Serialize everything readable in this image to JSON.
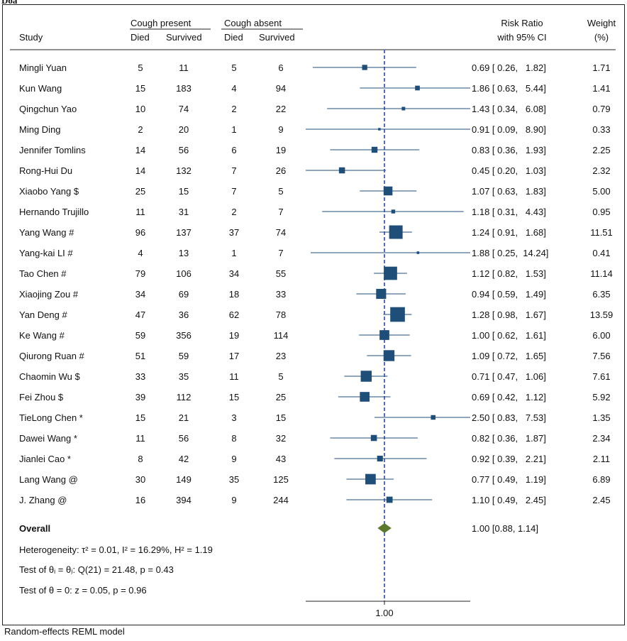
{
  "top_label": "Doa",
  "footer": "Random-effects REML model",
  "headers": {
    "group1": "Cough present",
    "group2": "Cough absent",
    "study": "Study",
    "died1": "Died",
    "surv1": "Survived",
    "died2": "Died",
    "surv2": "Survived",
    "rr_line1": "Risk Ratio",
    "rr_line2": "with 95% CI",
    "weight_line1": "Weight",
    "weight_line2": "(%)"
  },
  "overall": {
    "label": "Overall",
    "rr_text": "1.00 [0.88,  1.14]",
    "heterogeneity": "Heterogeneity: τ² = 0.01, I² = 16.29%, H² = 1.19",
    "test_theta_i": "Test of θᵢ = θⱼ: Q(21) = 21.48, p = 0.43",
    "test_theta_0": "Test of θ = 0: z = 0.05, p = 0.96"
  },
  "colors": {
    "marker": "#1f4e79",
    "diamond": "#5b7a2e",
    "refline": "#5b6cc4"
  },
  "chart_data": {
    "type": "forest",
    "x_scale": "log",
    "x_tick_labels": [
      "1.00"
    ],
    "reference_line": 1.0,
    "studies": [
      {
        "name": "Mingli Yuan",
        "died1": 5,
        "surv1": 11,
        "died2": 5,
        "surv2": 6,
        "rr": 0.69,
        "lo": 0.26,
        "hi": 1.82,
        "weight": 1.71,
        "rr_text": "0.69 [ 0.26,   1.82]",
        "weight_text": "1.71"
      },
      {
        "name": "Kun Wang",
        "died1": 15,
        "surv1": 183,
        "died2": 4,
        "surv2": 94,
        "rr": 1.86,
        "lo": 0.63,
        "hi": 5.44,
        "weight": 1.41,
        "rr_text": "1.86 [ 0.63,   5.44]",
        "weight_text": "1.41"
      },
      {
        "name": "Qingchun Yao",
        "died1": 10,
        "surv1": 74,
        "died2": 2,
        "surv2": 22,
        "rr": 1.43,
        "lo": 0.34,
        "hi": 6.08,
        "weight": 0.79,
        "rr_text": "1.43 [ 0.34,   6.08]",
        "weight_text": "0.79"
      },
      {
        "name": "Ming Ding",
        "died1": 2,
        "surv1": 20,
        "died2": 1,
        "surv2": 9,
        "rr": 0.91,
        "lo": 0.09,
        "hi": 8.9,
        "weight": 0.33,
        "rr_text": "0.91 [ 0.09,   8.90]",
        "weight_text": "0.33"
      },
      {
        "name": "Jennifer Tomlins",
        "died1": 14,
        "surv1": 56,
        "died2": 6,
        "surv2": 19,
        "rr": 0.83,
        "lo": 0.36,
        "hi": 1.93,
        "weight": 2.25,
        "rr_text": "0.83 [ 0.36,   1.93]",
        "weight_text": "2.25"
      },
      {
        "name": "Rong-Hui Du",
        "died1": 14,
        "surv1": 132,
        "died2": 7,
        "surv2": 26,
        "rr": 0.45,
        "lo": 0.2,
        "hi": 1.03,
        "weight": 2.32,
        "rr_text": "0.45 [ 0.20,   1.03]",
        "weight_text": "2.32"
      },
      {
        "name": "Xiaobo Yang $",
        "died1": 25,
        "surv1": 15,
        "died2": 7,
        "surv2": 5,
        "rr": 1.07,
        "lo": 0.63,
        "hi": 1.83,
        "weight": 5.0,
        "rr_text": "1.07 [ 0.63,   1.83]",
        "weight_text": "5.00"
      },
      {
        "name": "Hernando Trujillo",
        "died1": 11,
        "surv1": 31,
        "died2": 2,
        "surv2": 7,
        "rr": 1.18,
        "lo": 0.31,
        "hi": 4.43,
        "weight": 0.95,
        "rr_text": "1.18 [ 0.31,   4.43]",
        "weight_text": "0.95"
      },
      {
        "name": "Yang Wang #",
        "died1": 96,
        "surv1": 137,
        "died2": 37,
        "surv2": 74,
        "rr": 1.24,
        "lo": 0.91,
        "hi": 1.68,
        "weight": 11.51,
        "rr_text": "1.24 [ 0.91,   1.68]",
        "weight_text": "11.51"
      },
      {
        "name": "Yang-kai LI #",
        "died1": 4,
        "surv1": 13,
        "died2": 1,
        "surv2": 7,
        "rr": 1.88,
        "lo": 0.25,
        "hi": 14.24,
        "weight": 0.41,
        "rr_text": "1.88 [ 0.25,  14.24]",
        "weight_text": "0.41"
      },
      {
        "name": "Tao Chen #",
        "died1": 79,
        "surv1": 106,
        "died2": 34,
        "surv2": 55,
        "rr": 1.12,
        "lo": 0.82,
        "hi": 1.53,
        "weight": 11.14,
        "rr_text": "1.12 [ 0.82,   1.53]",
        "weight_text": "11.14"
      },
      {
        "name": "Xiaojing Zou #",
        "died1": 34,
        "surv1": 69,
        "died2": 18,
        "surv2": 33,
        "rr": 0.94,
        "lo": 0.59,
        "hi": 1.49,
        "weight": 6.35,
        "rr_text": "0.94 [ 0.59,   1.49]",
        "weight_text": "6.35"
      },
      {
        "name": "Yan Deng #",
        "died1": 47,
        "surv1": 36,
        "died2": 62,
        "surv2": 78,
        "rr": 1.28,
        "lo": 0.98,
        "hi": 1.67,
        "weight": 13.59,
        "rr_text": "1.28 [ 0.98,   1.67]",
        "weight_text": "13.59"
      },
      {
        "name": "Ke Wang #",
        "died1": 59,
        "surv1": 356,
        "died2": 19,
        "surv2": 114,
        "rr": 1.0,
        "lo": 0.62,
        "hi": 1.61,
        "weight": 6.0,
        "rr_text": "1.00 [ 0.62,   1.61]",
        "weight_text": "6.00"
      },
      {
        "name": "Qiurong Ruan #",
        "died1": 51,
        "surv1": 59,
        "died2": 17,
        "surv2": 23,
        "rr": 1.09,
        "lo": 0.72,
        "hi": 1.65,
        "weight": 7.56,
        "rr_text": "1.09 [ 0.72,   1.65]",
        "weight_text": "7.56"
      },
      {
        "name": "Chaomin Wu $",
        "died1": 33,
        "surv1": 35,
        "died2": 11,
        "surv2": 5,
        "rr": 0.71,
        "lo": 0.47,
        "hi": 1.06,
        "weight": 7.61,
        "rr_text": "0.71 [ 0.47,   1.06]",
        "weight_text": "7.61"
      },
      {
        "name": "Fei Zhou $",
        "died1": 39,
        "surv1": 112,
        "died2": 15,
        "surv2": 25,
        "rr": 0.69,
        "lo": 0.42,
        "hi": 1.12,
        "weight": 5.92,
        "rr_text": "0.69 [ 0.42,   1.12]",
        "weight_text": "5.92"
      },
      {
        "name": "TieLong Chen *",
        "died1": 15,
        "surv1": 21,
        "died2": 3,
        "surv2": 15,
        "rr": 2.5,
        "lo": 0.83,
        "hi": 7.53,
        "weight": 1.35,
        "rr_text": "2.50 [ 0.83,   7.53]",
        "weight_text": "1.35"
      },
      {
        "name": "Dawei Wang *",
        "died1": 11,
        "surv1": 56,
        "died2": 8,
        "surv2": 32,
        "rr": 0.82,
        "lo": 0.36,
        "hi": 1.87,
        "weight": 2.34,
        "rr_text": "0.82 [ 0.36,   1.87]",
        "weight_text": "2.34"
      },
      {
        "name": "Jianlei Cao *",
        "died1": 8,
        "surv1": 42,
        "died2": 9,
        "surv2": 43,
        "rr": 0.92,
        "lo": 0.39,
        "hi": 2.21,
        "weight": 2.11,
        "rr_text": "0.92 [ 0.39,   2.21]",
        "weight_text": "2.11"
      },
      {
        "name": "Lang Wang @",
        "died1": 30,
        "surv1": 149,
        "died2": 35,
        "surv2": 125,
        "rr": 0.77,
        "lo": 0.49,
        "hi": 1.19,
        "weight": 6.89,
        "rr_text": "0.77 [ 0.49,   1.19]",
        "weight_text": "6.89"
      },
      {
        "name": "J. Zhang @",
        "died1": 16,
        "surv1": 394,
        "died2": 9,
        "surv2": 244,
        "rr": 1.1,
        "lo": 0.49,
        "hi": 2.45,
        "weight": 2.45,
        "rr_text": "1.10 [ 0.49,   2.45]",
        "weight_text": "2.45"
      }
    ],
    "overall": {
      "rr": 1.0,
      "lo": 0.88,
      "hi": 1.14
    }
  }
}
